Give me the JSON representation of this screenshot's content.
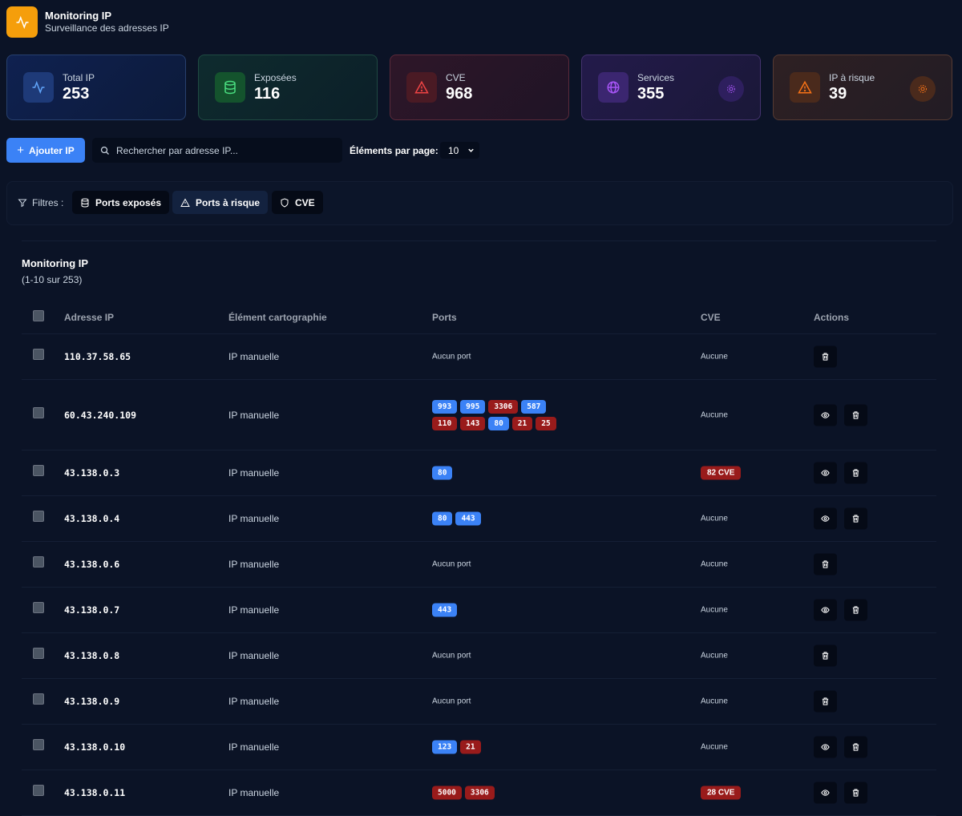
{
  "header": {
    "title": "Monitoring IP",
    "subtitle": "Surveillance des adresses IP"
  },
  "stats": [
    {
      "label": "Total IP",
      "value": 253
    },
    {
      "label": "Exposées",
      "value": 116
    },
    {
      "label": "CVE",
      "value": 968
    },
    {
      "label": "Services",
      "value": 355
    },
    {
      "label": "IP à risque",
      "value": 39
    }
  ],
  "toolbar": {
    "add_button": "Ajouter IP",
    "search_placeholder": "Rechercher par adresse IP...",
    "per_page_label": "Éléments par page:",
    "per_page_value": 10
  },
  "filters": {
    "label": "Filtres :",
    "items": [
      "Ports exposés",
      "Ports à risque",
      "CVE"
    ]
  },
  "table": {
    "title": "Monitoring IP",
    "subtitle": "(1-10 sur 253)",
    "columns": [
      "Adresse IP",
      "Élément cartographie",
      "Ports",
      "CVE",
      "Actions"
    ],
    "rows": [
      {
        "ip": "110.37.58.65",
        "element": "IP manuelle",
        "ports": "Aucun port",
        "cve": "Aucune",
        "cve_alert": false
      },
      {
        "ip": "60.43.240.109",
        "element": "IP manuelle",
        "ports": [
          {
            "port": 993,
            "risk": false
          },
          {
            "port": 995,
            "risk": false
          },
          {
            "port": 3306,
            "risk": true
          },
          {
            "port": 587,
            "risk": false
          },
          {
            "port": 110,
            "risk": true
          },
          {
            "port": 143,
            "risk": true
          },
          {
            "port": 80,
            "risk": false
          },
          {
            "port": 21,
            "risk": true
          },
          {
            "port": 25,
            "risk": true
          }
        ],
        "cve": "Aucune",
        "cve_alert": false
      },
      {
        "ip": "43.138.0.3",
        "element": "IP manuelle",
        "ports": [
          {
            "port": 80,
            "risk": false
          }
        ],
        "cve": "82 CVE",
        "cve_alert": true
      },
      {
        "ip": "43.138.0.4",
        "element": "IP manuelle",
        "ports": [
          {
            "port": 80,
            "risk": false
          },
          {
            "port": 443,
            "risk": false
          }
        ],
        "cve": "Aucune",
        "cve_alert": false
      },
      {
        "ip": "43.138.0.6",
        "element": "IP manuelle",
        "ports": "Aucun port",
        "cve": "Aucune",
        "cve_alert": false
      },
      {
        "ip": "43.138.0.7",
        "element": "IP manuelle",
        "ports": [
          {
            "port": 443,
            "risk": false
          }
        ],
        "cve": "Aucune",
        "cve_alert": false
      },
      {
        "ip": "43.138.0.8",
        "element": "IP manuelle",
        "ports": "Aucun port",
        "cve": "Aucune",
        "cve_alert": false
      },
      {
        "ip": "43.138.0.9",
        "element": "IP manuelle",
        "ports": "Aucun port",
        "cve": "Aucune",
        "cve_alert": false
      },
      {
        "ip": "43.138.0.10",
        "element": "IP manuelle",
        "ports": [
          {
            "port": 123,
            "risk": false
          },
          {
            "port": 21,
            "risk": true
          }
        ],
        "cve": "Aucune",
        "cve_alert": false
      },
      {
        "ip": "43.138.0.11",
        "element": "IP manuelle",
        "ports": [
          {
            "port": 5000,
            "risk": true
          },
          {
            "port": 3306,
            "risk": true
          }
        ],
        "cve": "28 CVE",
        "cve_alert": true
      }
    ]
  }
}
